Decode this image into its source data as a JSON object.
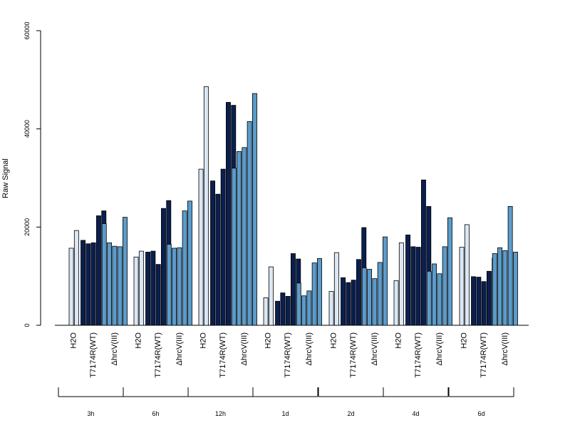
{
  "chart_data": {
    "type": "bar",
    "ylabel": "Raw Signal",
    "ylim": [
      0,
      60000
    ],
    "yticks": [
      0,
      20000,
      40000,
      60000
    ],
    "colors": {
      "H2O": "#dbe7f3",
      "T7174R(WT)": "#0a1f4f",
      "ΔhrcV(III)": "#5b9ccc"
    },
    "timepoints": [
      "3h",
      "6h",
      "12h",
      "1d",
      "2d",
      "4d",
      "6d"
    ],
    "group_labels": [
      "H2O",
      "T7174R(WT)",
      "ΔhrcV(III)"
    ],
    "groups": [
      {
        "timepoint": "3h",
        "H2O": [
          15700,
          19300
        ],
        "T7174R(WT)": [
          17300,
          16600,
          16800,
          22300,
          23300
        ],
        "ΔhrcV(III)": [
          20700,
          16800,
          16100,
          16000,
          22000
        ]
      },
      {
        "timepoint": "6h",
        "H2O": [
          13900,
          15100
        ],
        "T7174R(WT)": [
          14900,
          15100,
          12400,
          23800,
          25400
        ],
        "ΔhrcV(III)": [
          16500,
          15700,
          15800,
          23300,
          25300
        ]
      },
      {
        "timepoint": "12h",
        "H2O": [
          31800,
          48600
        ],
        "T7174R(WT)": [
          29400,
          26700,
          31800,
          45400,
          44800
        ],
        "ΔhrcV(III)": [
          32000,
          35400,
          36200,
          41500,
          47200
        ]
      },
      {
        "timepoint": "1d",
        "H2O": [
          5600,
          11900
        ],
        "T7174R(WT)": [
          4900,
          6600,
          5900,
          14600,
          13500
        ],
        "ΔhrcV(III)": [
          8600,
          6000,
          7000,
          12700,
          13600
        ]
      },
      {
        "timepoint": "2d",
        "H2O": [
          6900,
          14800
        ],
        "T7174R(WT)": [
          9700,
          8700,
          9200,
          13400,
          19900
        ],
        "ΔhrcV(III)": [
          11700,
          11400,
          9500,
          12800,
          18000
        ]
      },
      {
        "timepoint": "4d",
        "H2O": [
          9100,
          16800
        ],
        "T7174R(WT)": [
          18400,
          16000,
          15900,
          29600,
          24200
        ],
        "ΔhrcV(III)": [
          11000,
          12500,
          10500,
          16000,
          21900
        ]
      },
      {
        "timepoint": "6d",
        "H2O": [
          15900,
          20500
        ],
        "T7174R(WT)": [
          9900,
          9800,
          8900,
          11000,
          13700
        ],
        "ΔhrcV(III)": [
          14600,
          15800,
          15200,
          24200,
          14900
        ]
      }
    ]
  }
}
